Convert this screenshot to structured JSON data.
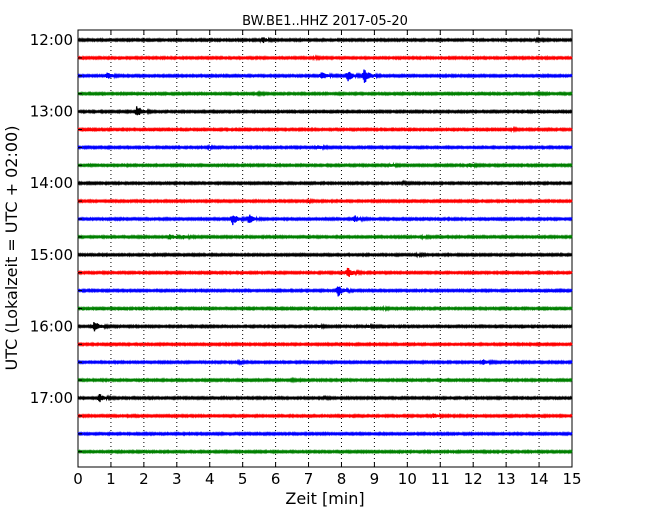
{
  "chart_data": {
    "type": "line",
    "title": "BW.BE1..HHZ 2017-05-20",
    "xlabel": "Zeit  [min]",
    "ylabel": "UTC (Lokalzeit = UTC + 02:00)",
    "xlim": [
      0,
      15
    ],
    "x_ticks": [
      "0",
      "1",
      "2",
      "3",
      "4",
      "5",
      "6",
      "7",
      "8",
      "9",
      "10",
      "11",
      "12",
      "13",
      "14",
      "15"
    ],
    "y_tick_labels": [
      "12:00",
      "13:00",
      "14:00",
      "15:00",
      "16:00",
      "17:00"
    ],
    "grid": true,
    "trace_interval_minutes": 15,
    "trace_colors": [
      "#000000",
      "#ff0000",
      "#0000ff",
      "#008000"
    ],
    "traces": [
      {
        "start": "12:00",
        "events": [
          {
            "t": 5.6,
            "amp": 0.5
          },
          {
            "t": 13.9,
            "amp": 0.15
          }
        ]
      },
      {
        "start": "12:15",
        "events": [
          {
            "t": 7.2,
            "amp": 0.1
          }
        ]
      },
      {
        "start": "12:30",
        "events": [
          {
            "t": 0.9,
            "amp": 0.5
          },
          {
            "t": 7.4,
            "amp": 0.7
          },
          {
            "t": 8.2,
            "amp": 0.9
          },
          {
            "t": 8.7,
            "amp": 1.3
          }
        ]
      },
      {
        "start": "12:45",
        "events": [
          {
            "t": 5.5,
            "amp": 0.1
          },
          {
            "t": 14.0,
            "amp": 0.1
          }
        ]
      },
      {
        "start": "13:00",
        "events": [
          {
            "t": 1.8,
            "amp": 1.0
          }
        ]
      },
      {
        "start": "13:15",
        "events": [
          {
            "t": 13.2,
            "amp": 0.12
          }
        ]
      },
      {
        "start": "13:30",
        "events": [
          {
            "t": 7.3,
            "amp": 0.3
          },
          {
            "t": 4.0,
            "amp": 0.1
          }
        ]
      },
      {
        "start": "13:45",
        "events": [
          {
            "t": 9.5,
            "amp": 0.2
          },
          {
            "t": 11.9,
            "amp": 0.3
          }
        ]
      },
      {
        "start": "14:00",
        "events": [
          {
            "t": 9.9,
            "amp": 0.12
          }
        ]
      },
      {
        "start": "14:15",
        "events": [
          {
            "t": 7.0,
            "amp": 0.1
          }
        ]
      },
      {
        "start": "14:30",
        "events": [
          {
            "t": 4.7,
            "amp": 1.0
          },
          {
            "t": 5.2,
            "amp": 0.8
          },
          {
            "t": 8.4,
            "amp": 0.6
          }
        ]
      },
      {
        "start": "14:45",
        "events": [
          {
            "t": 2.8,
            "amp": 0.4
          },
          {
            "t": 3.2,
            "amp": 0.3
          },
          {
            "t": 10.5,
            "amp": 0.15
          }
        ]
      },
      {
        "start": "15:00",
        "events": [
          {
            "t": 10.3,
            "amp": 0.1
          }
        ]
      },
      {
        "start": "15:15",
        "events": [
          {
            "t": 8.2,
            "amp": 0.9
          }
        ]
      },
      {
        "start": "15:30",
        "events": [
          {
            "t": 7.9,
            "amp": 0.9
          }
        ]
      },
      {
        "start": "15:45",
        "events": [
          {
            "t": 9.3,
            "amp": 0.1
          }
        ]
      },
      {
        "start": "16:00",
        "events": [
          {
            "t": 0.5,
            "amp": 1.0
          },
          {
            "t": 7.3,
            "amp": 0.2
          },
          {
            "t": 8.8,
            "amp": 0.2
          }
        ]
      },
      {
        "start": "16:15",
        "events": []
      },
      {
        "start": "16:30",
        "events": [
          {
            "t": 12.3,
            "amp": 0.4
          },
          {
            "t": 4.9,
            "amp": 0.1
          }
        ]
      },
      {
        "start": "16:45",
        "events": [
          {
            "t": 6.5,
            "amp": 0.08
          }
        ]
      },
      {
        "start": "17:00",
        "events": [
          {
            "t": 0.65,
            "amp": 0.7
          },
          {
            "t": 7.5,
            "amp": 0.1
          }
        ]
      },
      {
        "start": "17:15",
        "events": [
          {
            "t": 10.8,
            "amp": 0.35
          }
        ]
      },
      {
        "start": "17:30",
        "events": []
      },
      {
        "start": "17:45",
        "events": []
      }
    ]
  }
}
